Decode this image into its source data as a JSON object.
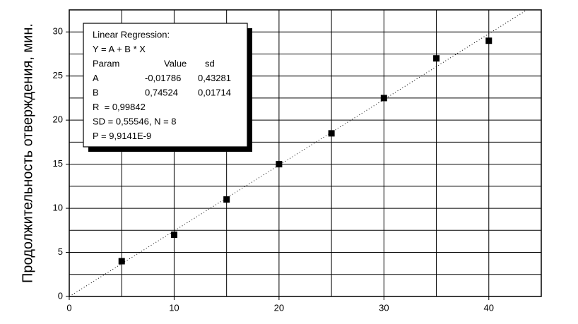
{
  "chart_data": {
    "type": "scatter",
    "ylabel": "Продолжительность отверждения, мин.",
    "series": [
      {
        "color": "#000000",
        "x": [
          5,
          10,
          15,
          20,
          25,
          30,
          35,
          40
        ],
        "values": [
          4,
          7,
          11,
          15,
          18.5,
          22.5,
          27,
          29
        ]
      }
    ],
    "xlim": [
      0,
      45
    ],
    "ylim": [
      0,
      32.5
    ],
    "xticks": [
      0,
      10,
      20,
      30,
      40
    ],
    "yticks": [
      0,
      5,
      10,
      15,
      20,
      25,
      30
    ],
    "xminor": [
      5,
      15,
      25,
      35
    ],
    "yminor": [
      2.5,
      7.5,
      12.5,
      17.5,
      22.5,
      27.5
    ],
    "grid": true,
    "regression": {
      "title": "Linear Regression:",
      "equation": "Y = A + B * X",
      "header": [
        "Param",
        "Value",
        "sd"
      ],
      "rows": [
        [
          "A",
          {
            "value": -0.01786,
            "label": "-0,01786"
          },
          "0,43281"
        ],
        [
          "B",
          {
            "value": 0.74524,
            "label": "0,74524"
          },
          "0,01714"
        ]
      ],
      "lines": [
        "R  = 0,99842",
        "SD = 0,55546, N = 8",
        "P = 9,9141E-9"
      ]
    }
  }
}
